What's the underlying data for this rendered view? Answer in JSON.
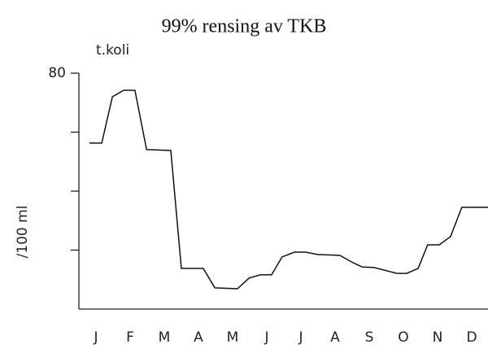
{
  "chart_data": {
    "type": "line",
    "title": "99% rensing av TKB",
    "y_unit_label": "t.koli",
    "y_label": "/100 ml",
    "categories": [
      "J",
      "F",
      "M",
      "A",
      "M",
      "J",
      "J",
      "A",
      "S",
      "O",
      "N",
      "D"
    ],
    "xlim": [
      0,
      12
    ],
    "ylim": [
      0,
      80
    ],
    "yticks": [
      80
    ],
    "minor_yticks": [
      20,
      40,
      60
    ],
    "color": "#111111",
    "x": [
      0.31,
      0.67,
      0.98,
      1.31,
      1.64,
      1.98,
      2.69,
      3.0,
      3.64,
      3.98,
      4.64,
      4.98,
      5.31,
      5.64,
      5.95,
      6.31,
      6.64,
      6.98,
      7.64,
      7.98,
      8.29,
      8.64,
      9.31,
      9.6,
      9.93,
      10.21,
      10.55,
      10.88,
      11.21,
      11.98
    ],
    "values": [
      56.3,
      56.3,
      72.0,
      74.2,
      74.2,
      54.1,
      53.8,
      13.8,
      13.8,
      7.2,
      6.9,
      10.5,
      11.6,
      11.6,
      17.7,
      19.3,
      19.3,
      18.5,
      18.2,
      16.0,
      14.3,
      14.1,
      12.1,
      12.1,
      13.8,
      21.8,
      21.8,
      24.6,
      34.5,
      34.5
    ]
  }
}
